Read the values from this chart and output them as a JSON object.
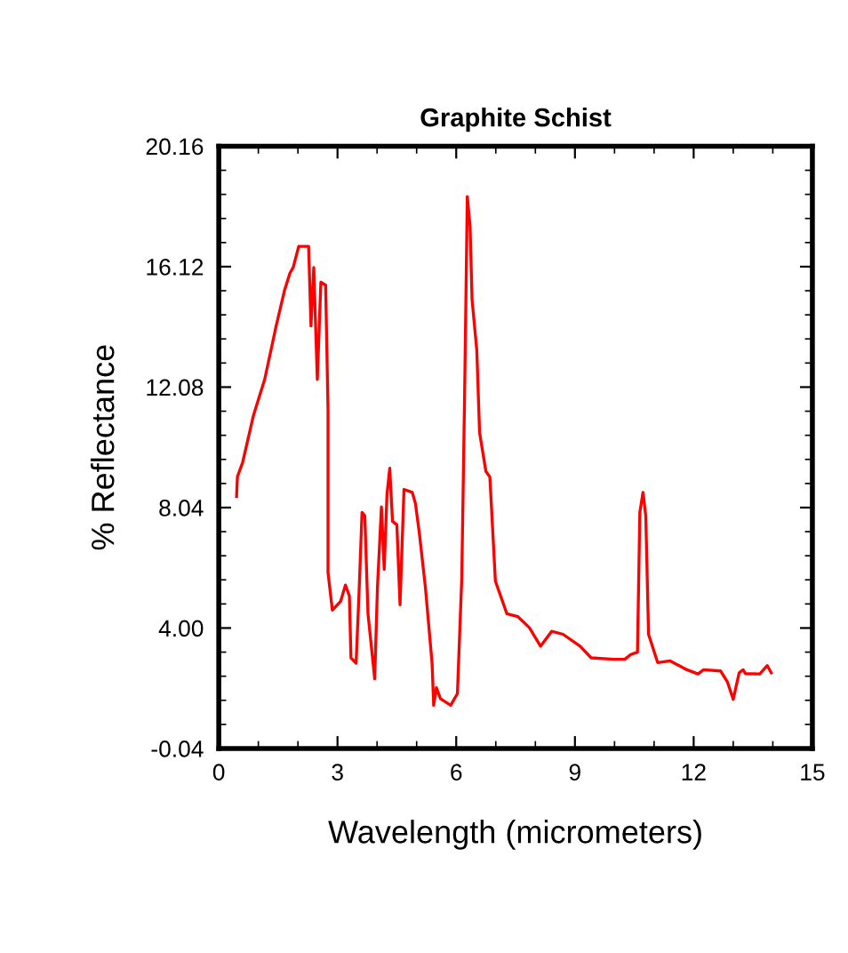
{
  "chart_data": {
    "type": "line",
    "title": "Graphite Schist",
    "xlabel": "Wavelength (micrometers)",
    "ylabel": "% Reflectance",
    "xlim": [
      0,
      15
    ],
    "xticks": [
      0,
      3,
      6,
      9,
      12,
      15
    ],
    "ylim": [
      -0.04,
      20.16
    ],
    "yticks": [
      {
        "value": -0.04,
        "label": "-0.04"
      },
      {
        "value": 4,
        "label": "4.00"
      },
      8.04,
      12.08,
      16.12,
      20.16
    ],
    "grid": false,
    "marker": "none",
    "line_style": "solid",
    "series": [
      {
        "color": "#ff0000",
        "x": [
          0.45,
          0.47,
          0.6,
          0.88,
          1.16,
          1.45,
          1.66,
          1.8,
          1.88,
          2.02,
          2.27,
          2.33,
          2.4,
          2.49,
          2.58,
          2.7,
          2.76,
          2.76,
          2.87,
          3.08,
          3.2,
          3.3,
          3.34,
          3.47,
          3.55,
          3.62,
          3.69,
          3.77,
          3.94,
          4.01,
          4.11,
          4.18,
          4.25,
          4.32,
          4.39,
          4.5,
          4.58,
          4.68,
          4.89,
          4.97,
          5.07,
          5.22,
          5.39,
          5.43,
          5.5,
          5.6,
          5.86,
          6.03,
          6.14,
          6.21,
          6.28,
          6.35,
          6.4,
          6.52,
          6.59,
          6.75,
          6.85,
          6.99,
          7.28,
          7.56,
          7.85,
          8.13,
          8.41,
          8.7,
          9.13,
          9.41,
          9.98,
          10.26,
          10.41,
          10.58,
          10.64,
          10.72,
          10.79,
          10.86,
          11.09,
          11.4,
          11.83,
          12.11,
          12.25,
          12.68,
          12.85,
          13.0,
          13.15,
          13.25,
          13.31,
          13.67,
          13.86,
          13.96
        ],
        "values": [
          8.41,
          9.07,
          9.54,
          11.15,
          12.34,
          14.13,
          15.32,
          15.91,
          16.09,
          16.8,
          16.8,
          14.13,
          16.09,
          12.34,
          15.6,
          15.5,
          11.33,
          5.87,
          4.6,
          4.9,
          5.44,
          5.08,
          3.0,
          2.82,
          5.38,
          7.88,
          7.76,
          4.48,
          2.3,
          5.38,
          8.06,
          5.97,
          8.47,
          9.36,
          7.58,
          7.46,
          4.78,
          8.65,
          8.55,
          8.17,
          7.16,
          5.38,
          2.82,
          1.41,
          2.0,
          1.63,
          1.41,
          1.8,
          5.67,
          11.63,
          18.47,
          17.48,
          15.02,
          13.31,
          10.56,
          9.25,
          9.07,
          5.57,
          4.48,
          4.38,
          4.01,
          3.39,
          3.89,
          3.79,
          3.39,
          3.0,
          2.95,
          2.95,
          3.11,
          3.19,
          7.88,
          8.55,
          7.76,
          3.79,
          2.84,
          2.9,
          2.6,
          2.46,
          2.6,
          2.56,
          2.2,
          1.61,
          2.5,
          2.6,
          2.47,
          2.46,
          2.74,
          2.5
        ]
      }
    ]
  }
}
